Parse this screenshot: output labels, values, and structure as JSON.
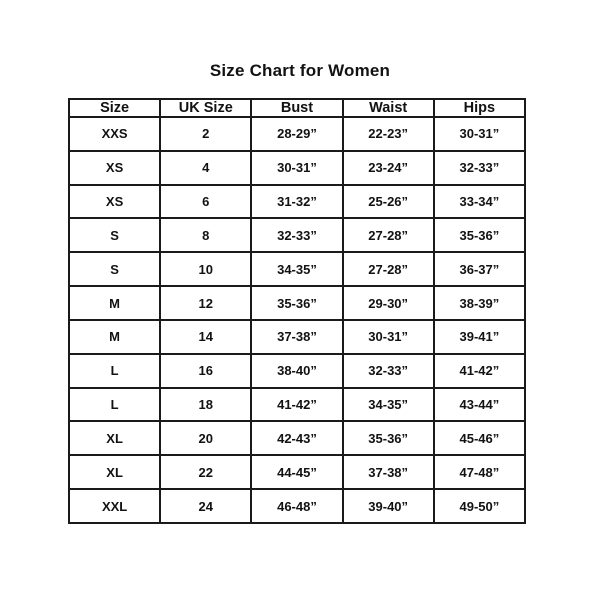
{
  "title": "Size Chart for Women",
  "chart_data": {
    "type": "table",
    "title": "Size Chart for Women",
    "columns": [
      "Size",
      "UK Size",
      "Bust",
      "Waist",
      "Hips"
    ],
    "rows": [
      [
        "XXS",
        "2",
        "28-29”",
        "22-23”",
        "30-31”"
      ],
      [
        "XS",
        "4",
        "30-31”",
        "23-24”",
        "32-33”"
      ],
      [
        "XS",
        "6",
        "31-32”",
        "25-26”",
        "33-34”"
      ],
      [
        "S",
        "8",
        "32-33”",
        "27-28”",
        "35-36”"
      ],
      [
        "S",
        "10",
        "34-35”",
        "27-28”",
        "36-37”"
      ],
      [
        "M",
        "12",
        "35-36”",
        "29-30”",
        "38-39”"
      ],
      [
        "M",
        "14",
        "37-38”",
        "30-31”",
        "39-41”"
      ],
      [
        "L",
        "16",
        "38-40”",
        "32-33”",
        "41-42”"
      ],
      [
        "L",
        "18",
        "41-42”",
        "34-35”",
        "43-44”"
      ],
      [
        "XL",
        "20",
        "42-43”",
        "35-36”",
        "45-46”"
      ],
      [
        "XL",
        "22",
        "44-45”",
        "37-38”",
        "47-48”"
      ],
      [
        "XXL",
        "24",
        "46-48”",
        "39-40”",
        "49-50”"
      ]
    ],
    "text_color": "#121212",
    "border_color": "#1a1a1a",
    "background_color": "#ffffff",
    "grid": true,
    "legend_position": "none"
  }
}
